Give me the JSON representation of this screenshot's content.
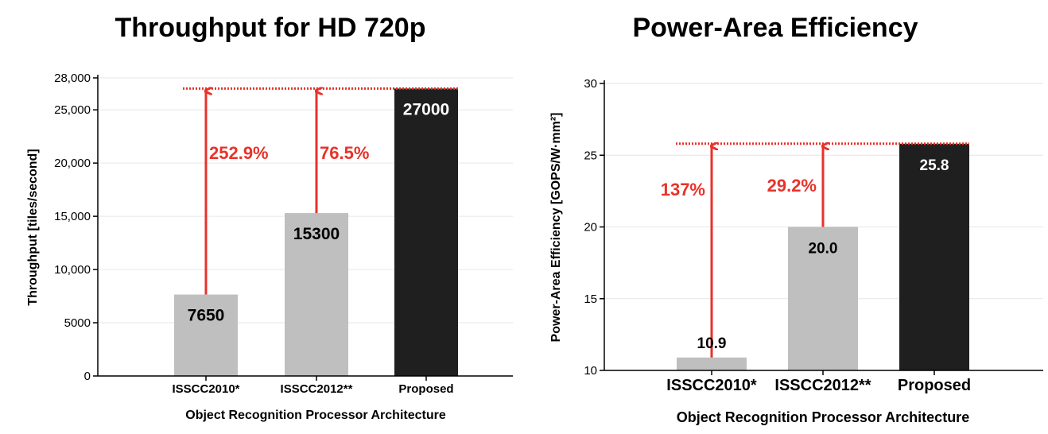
{
  "chart_data": [
    {
      "type": "bar",
      "title": "Throughput for HD 720p",
      "xlabel": "Object Recognition Processor Architecture",
      "ylabel": "Throughput [tiles/second]",
      "categories": [
        "ISSCC2010*",
        "ISSCC2012**",
        "Proposed"
      ],
      "values": [
        7650,
        15300,
        27000
      ],
      "value_labels": [
        "7650",
        "15300",
        "27000"
      ],
      "ylim": [
        0,
        28000
      ],
      "yticks": [
        0,
        5000,
        10000,
        15000,
        20000,
        25000,
        28000
      ],
      "ytick_labels": [
        "0",
        "5000",
        "10,000",
        "15,000",
        "20,000",
        "25,000",
        "28,000"
      ],
      "grid": true,
      "bar_colors": [
        "#bfbfbf",
        "#bfbfbf",
        "#1f1f1f"
      ],
      "improvements": [
        {
          "from_category": "ISSCC2010*",
          "label": "252.9%"
        },
        {
          "from_category": "ISSCC2012**",
          "label": "76.5%"
        }
      ],
      "reference_line": {
        "value": 27000,
        "color": "#e8322a",
        "style": "dotted"
      }
    },
    {
      "type": "bar",
      "title": "Power-Area Efficiency",
      "xlabel": "Object Recognition Processor Architecture",
      "ylabel": "Power-Area Efficiency [GOPS/W·mm²]",
      "categories": [
        "ISSCC2010*",
        "ISSCC2012**",
        "Proposed"
      ],
      "values": [
        10.9,
        20.0,
        25.8
      ],
      "value_labels": [
        "10.9",
        "20.0",
        "25.8"
      ],
      "ylim": [
        10,
        30
      ],
      "yticks": [
        10,
        15,
        20,
        25,
        30
      ],
      "ytick_labels": [
        "10",
        "15",
        "20",
        "25",
        "30"
      ],
      "grid": true,
      "bar_colors": [
        "#bfbfbf",
        "#bfbfbf",
        "#1f1f1f"
      ],
      "improvements": [
        {
          "from_category": "ISSCC2010*",
          "label": "137%"
        },
        {
          "from_category": "ISSCC2012**",
          "label": "29.2%"
        }
      ],
      "reference_line": {
        "value": 25.8,
        "color": "#e8322a",
        "style": "dotted"
      }
    }
  ]
}
